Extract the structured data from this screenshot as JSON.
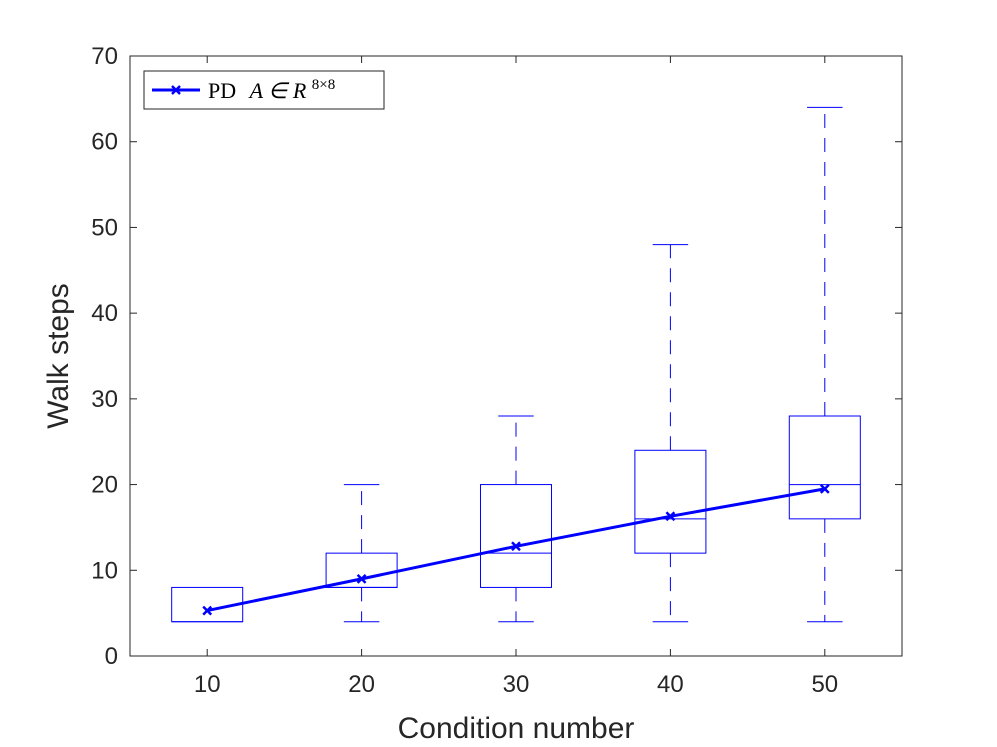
{
  "chart_data": {
    "type": "box",
    "title": "",
    "xlabel": "Condition number",
    "ylabel": "Walk steps",
    "xlim": [
      5,
      55
    ],
    "ylim": [
      0,
      70
    ],
    "xticks": [
      10,
      20,
      30,
      40,
      50
    ],
    "yticks": [
      0,
      10,
      20,
      30,
      40,
      50,
      60,
      70
    ],
    "grid": false,
    "legend": {
      "placement": "top-left",
      "label_prefix": "PD",
      "label_math": "A ∈ R",
      "label_superscript": "8×8"
    },
    "boxes": [
      {
        "x": 10,
        "min": 4,
        "q1": 4,
        "median": 4,
        "q3": 8,
        "max": 8
      },
      {
        "x": 20,
        "min": 4,
        "q1": 8,
        "median": 8,
        "q3": 12,
        "max": 20
      },
      {
        "x": 30,
        "min": 4,
        "q1": 8,
        "median": 12,
        "q3": 20,
        "max": 28
      },
      {
        "x": 40,
        "min": 4,
        "q1": 12,
        "median": 16,
        "q3": 24,
        "max": 48
      },
      {
        "x": 50,
        "min": 4,
        "q1": 16,
        "median": 20,
        "q3": 28,
        "max": 64
      }
    ],
    "series": [
      {
        "name": "PD A ∈ R^{8×8}",
        "marker": "x",
        "color": "#0000ff",
        "x": [
          10,
          20,
          30,
          40,
          50
        ],
        "y": [
          5.3,
          9.0,
          12.8,
          16.3,
          19.5
        ]
      }
    ],
    "colors": {
      "box": "#0000ff",
      "mean_line": "#0000ff",
      "axis": "#262626",
      "median": "#0000ff"
    }
  }
}
